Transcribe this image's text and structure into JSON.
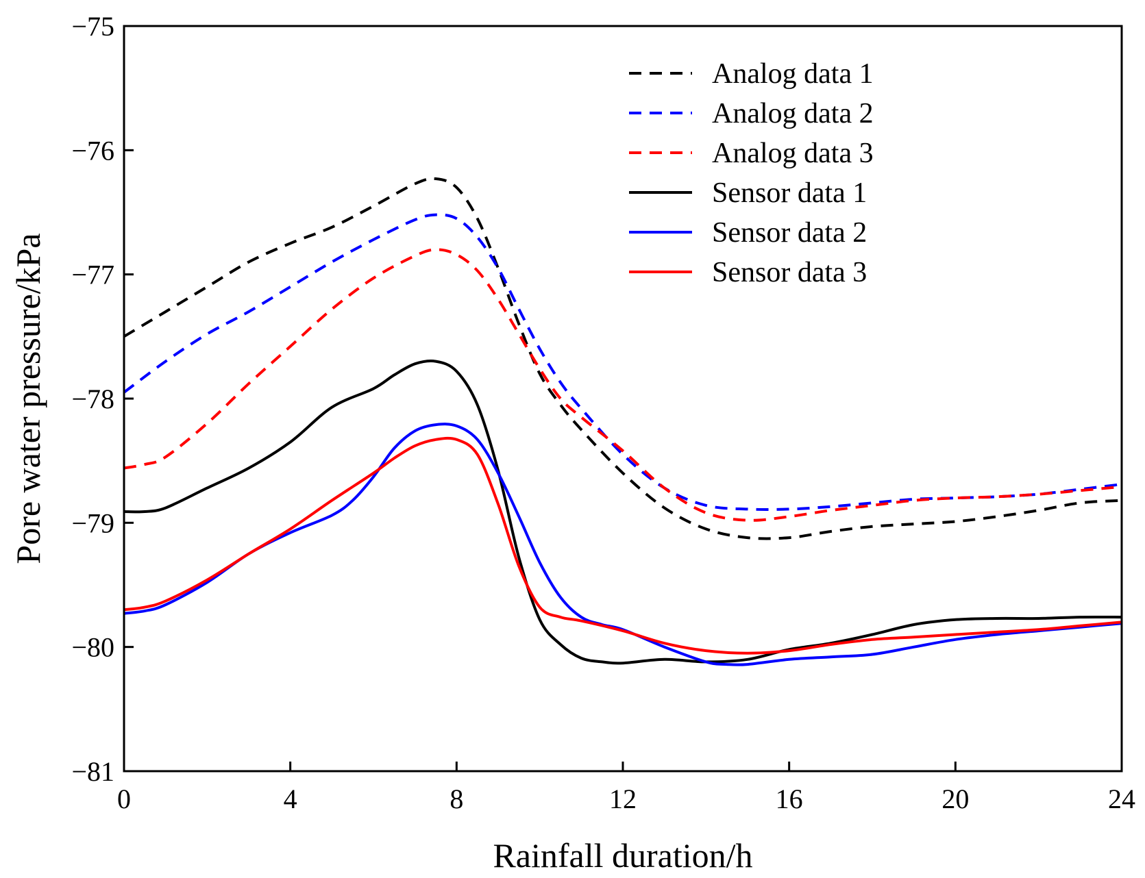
{
  "chart_data": {
    "type": "line",
    "title": "",
    "xlabel": "Rainfall duration/h",
    "ylabel": "Pore water pressure/kPa",
    "xlim": [
      0,
      24
    ],
    "ylim": [
      -81,
      -75
    ],
    "xticks": [
      0,
      4,
      8,
      12,
      16,
      20,
      24
    ],
    "xtick_labels": [
      "0",
      "4",
      "8",
      "12",
      "16",
      "20",
      "24"
    ],
    "yticks": [
      -81,
      -80,
      -79,
      -78,
      -77,
      -76,
      -75
    ],
    "ytick_labels": [
      "−81",
      "−80",
      "−79",
      "−78",
      "−77",
      "−76",
      "−75"
    ],
    "grid": false,
    "legend_position": "top-right",
    "series": [
      {
        "name": "Analog data 1",
        "color": "#000000",
        "style": "dashed",
        "x": [
          0,
          1,
          2,
          3,
          4,
          5,
          6,
          7,
          7.5,
          8,
          8.5,
          9,
          9.5,
          10,
          10.5,
          11,
          12,
          13,
          14,
          15,
          16,
          17,
          18,
          19,
          20,
          21,
          22,
          23,
          24
        ],
        "y": [
          -77.5,
          -77.3,
          -77.1,
          -76.9,
          -76.75,
          -76.62,
          -76.45,
          -76.27,
          -76.23,
          -76.3,
          -76.55,
          -76.95,
          -77.4,
          -77.8,
          -78.05,
          -78.25,
          -78.6,
          -78.88,
          -79.05,
          -79.12,
          -79.12,
          -79.07,
          -79.03,
          -79.01,
          -78.99,
          -78.95,
          -78.9,
          -78.84,
          -78.82
        ]
      },
      {
        "name": "Analog data 2",
        "color": "#0000ff",
        "style": "dashed",
        "x": [
          0,
          1,
          2,
          3,
          4,
          5,
          6,
          7,
          7.5,
          8,
          8.5,
          9,
          9.5,
          10,
          10.5,
          11,
          12,
          13,
          14,
          15,
          16,
          17,
          18,
          19,
          20,
          21,
          22,
          23,
          24
        ],
        "y": [
          -77.95,
          -77.7,
          -77.48,
          -77.3,
          -77.1,
          -76.9,
          -76.72,
          -76.56,
          -76.52,
          -76.55,
          -76.7,
          -76.95,
          -77.28,
          -77.6,
          -77.87,
          -78.08,
          -78.45,
          -78.72,
          -78.86,
          -78.89,
          -78.89,
          -78.87,
          -78.84,
          -78.81,
          -78.8,
          -78.79,
          -78.77,
          -78.73,
          -78.69
        ]
      },
      {
        "name": "Analog data 3",
        "color": "#ff0000",
        "style": "dashed",
        "x": [
          0,
          0.5,
          1,
          2,
          3,
          4,
          5,
          6,
          7,
          7.5,
          8,
          8.5,
          9,
          9.5,
          10,
          10.5,
          11,
          12,
          13,
          14,
          15,
          16,
          17,
          18,
          19,
          20,
          21,
          22,
          23,
          24
        ],
        "y": [
          -78.56,
          -78.53,
          -78.47,
          -78.2,
          -77.88,
          -77.58,
          -77.28,
          -77.03,
          -76.85,
          -76.8,
          -76.84,
          -76.97,
          -77.2,
          -77.48,
          -77.76,
          -78.0,
          -78.15,
          -78.42,
          -78.72,
          -78.92,
          -78.98,
          -78.95,
          -78.9,
          -78.86,
          -78.82,
          -78.8,
          -78.79,
          -78.77,
          -78.74,
          -78.71
        ]
      },
      {
        "name": "Sensor data 1",
        "color": "#000000",
        "style": "solid",
        "x": [
          0,
          0.5,
          1,
          2,
          3,
          4,
          5,
          6,
          6.5,
          7,
          7.5,
          8,
          8.5,
          9,
          9.5,
          10,
          10.5,
          11,
          11.5,
          12,
          13,
          14,
          15,
          16,
          17,
          18,
          19,
          20,
          21,
          22,
          23,
          24
        ],
        "y": [
          -78.91,
          -78.91,
          -78.88,
          -78.72,
          -78.56,
          -78.35,
          -78.07,
          -77.92,
          -77.81,
          -77.72,
          -77.7,
          -77.78,
          -78.05,
          -78.58,
          -79.28,
          -79.78,
          -79.98,
          -80.09,
          -80.12,
          -80.13,
          -80.1,
          -80.12,
          -80.1,
          -80.02,
          -79.97,
          -79.9,
          -79.82,
          -79.78,
          -79.77,
          -79.77,
          -79.76,
          -79.76
        ]
      },
      {
        "name": "Sensor data 2",
        "color": "#0000ff",
        "style": "solid",
        "x": [
          0,
          0.5,
          1,
          2,
          3,
          4,
          5,
          5.5,
          6,
          6.5,
          7,
          7.5,
          8,
          8.5,
          9,
          9.5,
          10,
          10.5,
          11,
          11.5,
          12,
          13,
          14,
          14.5,
          15,
          16,
          17,
          18,
          19,
          20,
          21,
          22,
          23,
          24
        ],
        "y": [
          -79.73,
          -79.71,
          -79.66,
          -79.48,
          -79.25,
          -79.08,
          -78.94,
          -78.82,
          -78.63,
          -78.4,
          -78.26,
          -78.21,
          -78.22,
          -78.33,
          -78.6,
          -78.95,
          -79.32,
          -79.6,
          -79.76,
          -79.82,
          -79.86,
          -80.0,
          -80.12,
          -80.14,
          -80.14,
          -80.1,
          -80.08,
          -80.06,
          -80.0,
          -79.94,
          -79.9,
          -79.87,
          -79.84,
          -79.81
        ]
      },
      {
        "name": "Sensor data 3",
        "color": "#ff0000",
        "style": "solid",
        "x": [
          0,
          0.5,
          1,
          2,
          3,
          4,
          5,
          6,
          6.5,
          7,
          7.5,
          8,
          8.5,
          9,
          9.5,
          10,
          10.5,
          11,
          12,
          13,
          14,
          15,
          16,
          17,
          18,
          19,
          20,
          21,
          22,
          23,
          24
        ],
        "y": [
          -79.7,
          -79.68,
          -79.63,
          -79.46,
          -79.25,
          -79.05,
          -78.82,
          -78.6,
          -78.48,
          -78.38,
          -78.33,
          -78.33,
          -78.45,
          -78.85,
          -79.35,
          -79.68,
          -79.76,
          -79.79,
          -79.87,
          -79.97,
          -80.03,
          -80.05,
          -80.03,
          -79.98,
          -79.94,
          -79.92,
          -79.9,
          -79.88,
          -79.86,
          -79.83,
          -79.8
        ]
      }
    ]
  }
}
